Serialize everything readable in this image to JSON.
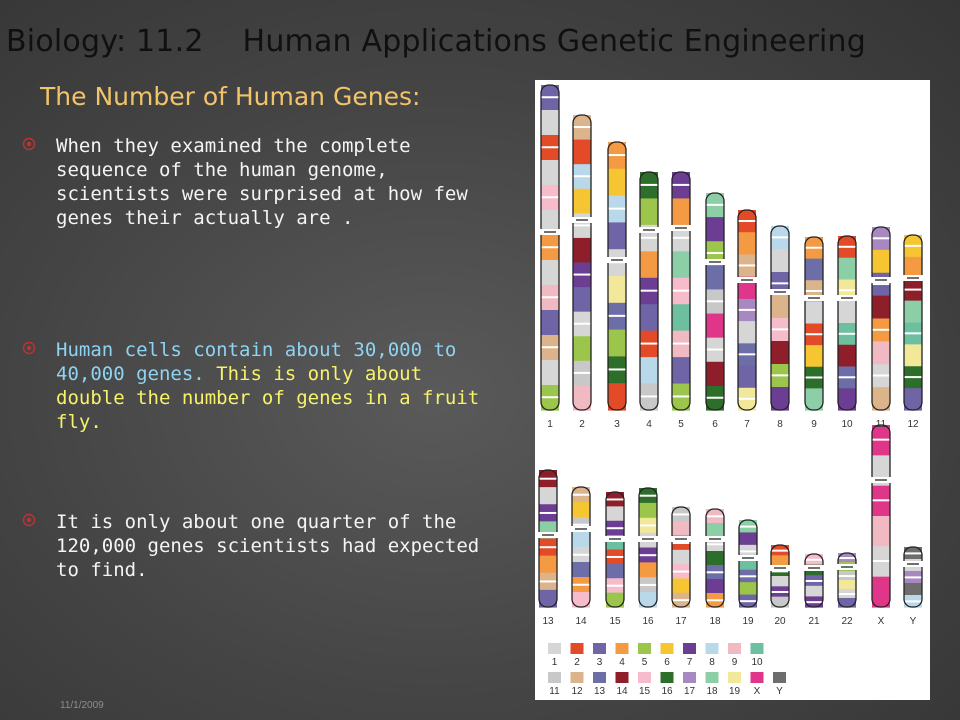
{
  "slide": {
    "title": "Biology: 11.2    Human Applications Genetic Engineering",
    "subtitle": "The Number of Human Genes:",
    "date": "11/1/2009",
    "bullets": [
      {
        "text": "When they examined the complete sequence of the human genome, scientists were surprised at how few genes their actually are ."
      },
      {
        "text_a": "Human cells contain about 30,000 to 40,000 genes. ",
        "text_b": "This is only about double the number of genes in a fruit fly."
      },
      {
        "text": "It is only about one quarter of the 120,000 genes scientists had expected to find."
      }
    ]
  },
  "figure": {
    "row1_labels": [
      "1",
      "2",
      "3",
      "4",
      "5",
      "6",
      "7",
      "8",
      "9",
      "10",
      "11",
      "12"
    ],
    "row2_labels": [
      "13",
      "14",
      "15",
      "16",
      "17",
      "18",
      "19",
      "20",
      "21",
      "22",
      "X",
      "Y"
    ],
    "legend_row1_labels": [
      "1",
      "2",
      "3",
      "4",
      "5",
      "6",
      "7",
      "8",
      "9",
      "10"
    ],
    "legend_row2_labels": [
      "11",
      "12",
      "13",
      "14",
      "15",
      "16",
      "17",
      "18",
      "19",
      "X",
      "Y"
    ],
    "legend_row1_colors": [
      "#d6d6d6",
      "#e34a27",
      "#6e64a6",
      "#f39a43",
      "#9bc54b",
      "#f5c632",
      "#6b3e94",
      "#b9d8ea",
      "#f1b9c2",
      "#6cc0a0"
    ],
    "legend_row2_colors": [
      "#c8c8c8",
      "#dcb48b",
      "#6d6ea8",
      "#8e1e2a",
      "#f6bccb",
      "#2d6e2a",
      "#a888c0",
      "#8ccfa6",
      "#f2e89a",
      "#e0368a",
      "#6d6d6d"
    ]
  }
}
